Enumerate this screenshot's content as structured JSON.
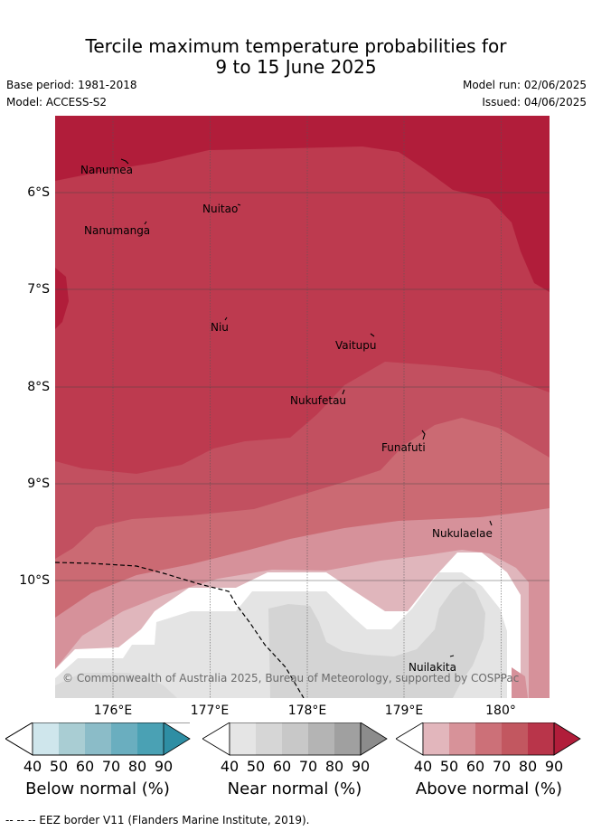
{
  "title_line1": "Tercile maximum temperature probabilities for",
  "title_line2": "9 to 15 June 2025",
  "base_period": "Base period: 1981-2018",
  "model": "Model: ACCESS-S2",
  "model_run": "Model run: 02/06/2025",
  "issued": "Issued: 04/06/2025",
  "lat_labels": [
    "6°S",
    "7°S",
    "8°S",
    "9°S",
    "10°S"
  ],
  "lon_labels": [
    "176°E",
    "177°E",
    "178°E",
    "179°E",
    "180°"
  ],
  "places": {
    "nanumea": "Nanumea",
    "nuitao": "Nuitao",
    "nanumanga": "Nanumanga",
    "niu": "Niu",
    "vaitupu": "Vaitupu",
    "nukufetau": "Nukufetau",
    "funafuti": "Funafuti",
    "nukulaelae": "Nukulaelae",
    "nuilakita": "Nuilakita"
  },
  "copyright": "© Commonwealth of Australia 2025, Bureau of Meteorology, supported by COSPPac",
  "colorbars": {
    "below": {
      "title": "Below normal (%)",
      "ticks": [
        "40",
        "50",
        "60",
        "70",
        "80",
        "90"
      ],
      "colors": [
        "#cfe6ec",
        "#a9cdd3",
        "#8bbcc8",
        "#6aaebf",
        "#4aa1b4",
        "#2e8ea4"
      ]
    },
    "near": {
      "title": "Near normal (%)",
      "ticks": [
        "40",
        "50",
        "60",
        "70",
        "80",
        "90"
      ],
      "colors": [
        "#e5e5e5",
        "#d6d6d6",
        "#c8c8c8",
        "#b4b4b4",
        "#a0a0a0",
        "#8c8c8c"
      ]
    },
    "above": {
      "title": "Above normal (%)",
      "ticks": [
        "40",
        "50",
        "60",
        "70",
        "80",
        "90"
      ],
      "colors": [
        "#e2b6bc",
        "#d79299",
        "#cc7078",
        "#c25760",
        "#b9354a",
        "#b11d3a"
      ]
    }
  },
  "footer": "--  --  -- EEZ border V11 (Flanders Marine Institute, 2019)."
}
